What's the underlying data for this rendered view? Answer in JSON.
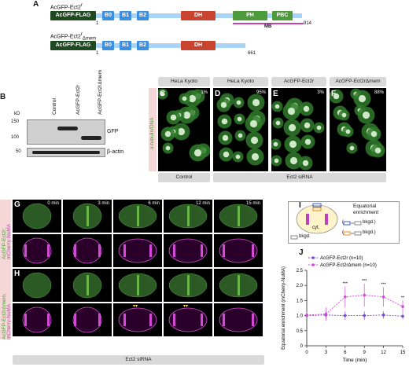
{
  "panel_labels": {
    "a": "A",
    "b": "B",
    "c": "C",
    "d": "D",
    "e": "E",
    "f": "F",
    "g": "G",
    "h": "H",
    "i": "I",
    "j": "J"
  },
  "panelA": {
    "construct1": "AcGFP-Ect2",
    "construct1_sup": "r",
    "construct2": "AcGFP-Ect2",
    "construct2_sup": "r",
    "construct2_sub": "Δmem",
    "tag": "AcGFP-FLAG",
    "domains": [
      "B0",
      "B1",
      "B2",
      "DH",
      "PH",
      "PBC"
    ],
    "mb_label": "MB",
    "start1": "1",
    "end1": "914",
    "start2": "1",
    "end2": "661",
    "colors": {
      "tag": "#1f4a1f",
      "brct": "#3f8fe0",
      "linker": "#a9d4f5",
      "dh": "#c9442e",
      "ph": "#4c9a3a",
      "mb": "#c13fc1"
    }
  },
  "panelB": {
    "kd_label": "kD",
    "lanes": [
      "Control",
      "AcGFP-Ect2r",
      "AcGFP-Ect2rΔmem"
    ],
    "markers": [
      "150",
      "100",
      "50"
    ],
    "bands": [
      "GFP",
      "β-actin"
    ]
  },
  "panelsCF": {
    "side_label": "α-tubulin/DNA",
    "headers": [
      "HeLa Kyoto",
      "HeLa Kyoto",
      "AcGFP-Ect2r",
      "AcGFP-Ect2rΔmem"
    ],
    "letters": [
      "C",
      "D",
      "E",
      "F"
    ],
    "percents": [
      "1%",
      "95%",
      "3%",
      "88%"
    ],
    "bottom_control": "Control",
    "bottom_sirna": "Ect2 siRNA"
  },
  "panelsGH": {
    "times": [
      "0 min",
      "3 min",
      "6 min",
      "12 min",
      "15 min"
    ],
    "label_g1": "AcGFP-Ect2r;",
    "label_g2": "mCherry-NuMA",
    "label_h1": "AcGFP-Ect2rΔmem;",
    "label_h2": "mCherry-NuMA",
    "bottom": "Ect2 siRNA",
    "arrowheads": "▾▾"
  },
  "panelI": {
    "title1": "Equatorial",
    "title2": "enrichment",
    "row1": "bkgd.)",
    "row2": "bkgd.)",
    "cyt": "cyt.",
    "bkgd": "bkgd."
  },
  "chart_data": {
    "type": "line",
    "x": [
      0,
      3,
      6,
      9,
      12,
      15
    ],
    "xlabel": "Time (min)",
    "ylabel": "Equatorial enrichment (mCherry-NuMA)",
    "ylim": [
      0,
      2.5
    ],
    "yticks": [
      "0",
      "0.5",
      "1.0",
      "1.5",
      "2.0",
      "2.5"
    ],
    "xticks": [
      "0",
      "3",
      "6",
      "9",
      "12",
      "15"
    ],
    "legend_location": "top",
    "series": [
      {
        "name": "AcGFP-Ect2r (n=10)",
        "values": [
          1.0,
          1.02,
          1.0,
          1.0,
          1.02,
          0.98
        ],
        "err": [
          0.08,
          0.12,
          0.14,
          0.14,
          0.12,
          0.1
        ],
        "color": "#7a4ad6"
      },
      {
        "name": "AcGFP-Ect2rΔmem (n=10)",
        "values": [
          1.02,
          1.05,
          1.62,
          1.68,
          1.62,
          1.3
        ],
        "err": [
          0.1,
          0.22,
          0.35,
          0.38,
          0.32,
          0.2
        ],
        "color": "#d24ad6"
      }
    ],
    "significance": [
      "",
      "",
      "***",
      "***",
      "***",
      "**"
    ]
  }
}
